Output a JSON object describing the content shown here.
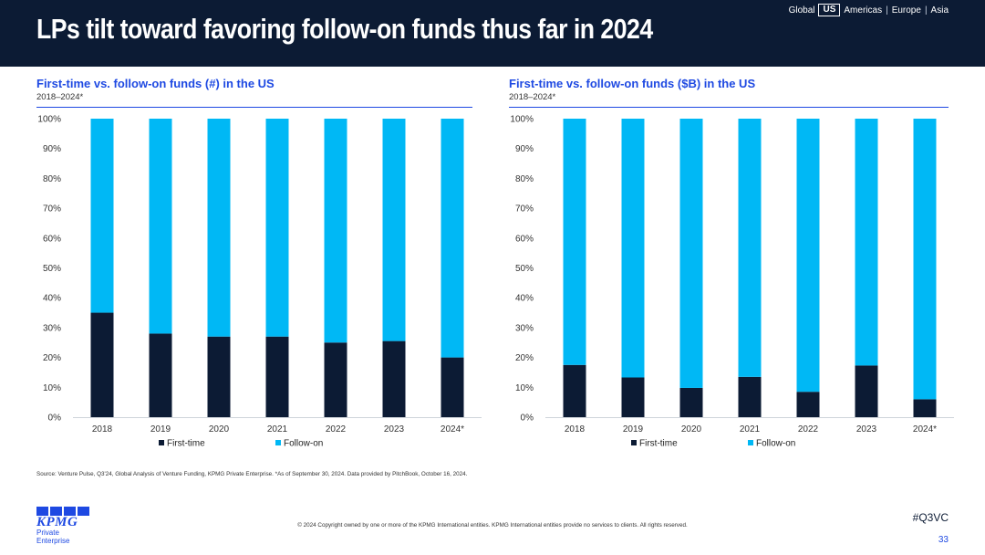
{
  "header": {
    "title": "LPs tilt toward favoring follow-on funds thus far in 2024",
    "regions": [
      "Global",
      "US",
      "Americas",
      "Europe",
      "Asia"
    ],
    "active_region": "US"
  },
  "colors": {
    "header_bg": "#0c1b34",
    "first_time": "#0c1b34",
    "follow_on": "#00b8f5",
    "accent_blue": "#1e49e2"
  },
  "chart_data": [
    {
      "type": "bar",
      "stacked": true,
      "title": "First-time vs. follow-on funds (#) in the US",
      "subtitle": "2018–2024*",
      "categories": [
        "2018",
        "2019",
        "2020",
        "2021",
        "2022",
        "2023",
        "2024*"
      ],
      "series": [
        {
          "name": "First-time",
          "values": [
            35,
            28,
            27,
            27,
            25,
            25.5,
            20
          ]
        },
        {
          "name": "Follow-on",
          "values": [
            65,
            72,
            73,
            73,
            75,
            74.5,
            80
          ]
        }
      ],
      "yticks": [
        "0%",
        "10%",
        "20%",
        "30%",
        "40%",
        "50%",
        "60%",
        "70%",
        "80%",
        "90%",
        "100%"
      ],
      "ylim": [
        0,
        100
      ],
      "legend": "bottom-center"
    },
    {
      "type": "bar",
      "stacked": true,
      "title": "First-time vs. follow-on funds ($B) in the US",
      "subtitle": "2018–2024*",
      "categories": [
        "2018",
        "2019",
        "2020",
        "2021",
        "2022",
        "2023",
        "2024*"
      ],
      "series": [
        {
          "name": "First-time",
          "values": [
            17.5,
            13.3,
            9.8,
            13.5,
            8.5,
            17.3,
            6
          ]
        },
        {
          "name": "Follow-on",
          "values": [
            82.5,
            86.7,
            90.2,
            86.5,
            91.5,
            82.7,
            94
          ]
        }
      ],
      "yticks": [
        "0%",
        "10%",
        "20%",
        "30%",
        "40%",
        "50%",
        "60%",
        "70%",
        "80%",
        "90%",
        "100%"
      ],
      "ylim": [
        0,
        100
      ],
      "legend": "bottom-center"
    }
  ],
  "footer": {
    "source": "Source: Venture Pulse, Q3'24, Global Analysis of Venture Funding, KPMG Private Enterprise. *As of September 30, 2024. Data provided by PitchBook, October 16, 2024.",
    "logo_text": "KPMG",
    "logo_sub": "Private Enterprise",
    "copyright": "© 2024 Copyright owned by one or more of the KPMG International entities. KPMG International entities provide no services to clients. All rights reserved.",
    "hashtag": "#Q3VC",
    "page_number": "33"
  }
}
